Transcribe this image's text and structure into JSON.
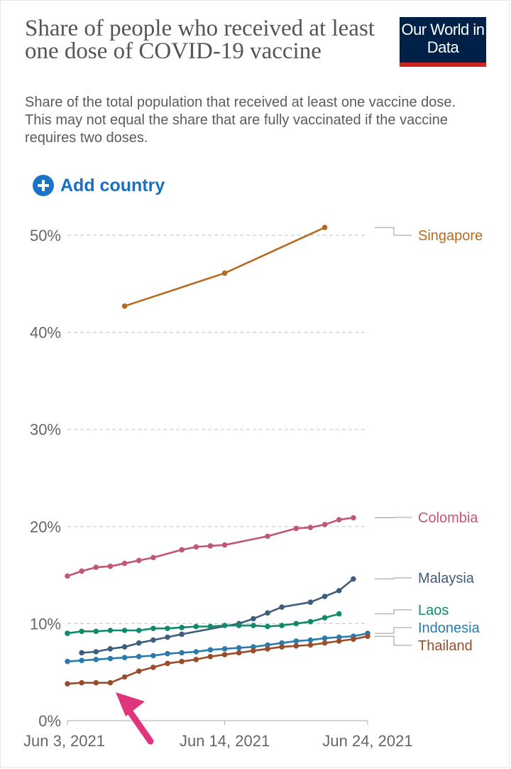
{
  "title": "Share of people who received at least one dose of COVID-19 vaccine",
  "subtitle": "Share of the total population that received at least one vaccine dose. This may not equal the share that are fully vaccinated if the vaccine requires two doses.",
  "logo_text": "Our World in Data",
  "add_country_label": "Add country",
  "colors": {
    "logo_bg": "#002147",
    "logo_bar": "#ce261e",
    "add_button": "#1a73c7",
    "arrow": "#e0357d",
    "grid": "#cccccc"
  },
  "chart_data": {
    "type": "line",
    "x_start": "2021-06-03",
    "xlim": [
      "2021-06-03",
      "2021-06-24"
    ],
    "x_tick_labels": [
      "Jun 3, 2021",
      "Jun 14, 2021",
      "Jun 24, 2021"
    ],
    "x_tick_dates": [
      "2021-06-03",
      "2021-06-14",
      "2021-06-24"
    ],
    "ylim": [
      0,
      50
    ],
    "y_ticks": [
      0,
      10,
      20,
      30,
      40,
      50
    ],
    "y_tick_labels": [
      "0%",
      "10%",
      "20%",
      "30%",
      "40%",
      "50%"
    ],
    "grid": true,
    "legend": "right",
    "annotation": "arrow",
    "series": [
      {
        "name": "Singapore",
        "color": "#b56b1f",
        "x": [
          "2021-06-07",
          "2021-06-14",
          "2021-06-21"
        ],
        "y": [
          42.7,
          46.1,
          50.8
        ]
      },
      {
        "name": "Colombia",
        "color": "#c05773",
        "x": [
          "2021-06-03",
          "2021-06-04",
          "2021-06-05",
          "2021-06-06",
          "2021-06-07",
          "2021-06-08",
          "2021-06-09",
          "2021-06-11",
          "2021-06-12",
          "2021-06-13",
          "2021-06-14",
          "2021-06-17",
          "2021-06-19",
          "2021-06-20",
          "2021-06-21",
          "2021-06-22",
          "2021-06-23"
        ],
        "y": [
          14.9,
          15.4,
          15.8,
          15.9,
          16.2,
          16.5,
          16.8,
          17.6,
          17.9,
          18.0,
          18.1,
          19.0,
          19.8,
          19.9,
          20.2,
          20.7,
          20.9
        ]
      },
      {
        "name": "Malaysia",
        "color": "#3f5d7d",
        "x": [
          "2021-06-04",
          "2021-06-05",
          "2021-06-06",
          "2021-06-07",
          "2021-06-08",
          "2021-06-09",
          "2021-06-10",
          "2021-06-11",
          "2021-06-15",
          "2021-06-16",
          "2021-06-17",
          "2021-06-18",
          "2021-06-20",
          "2021-06-21",
          "2021-06-22",
          "2021-06-23"
        ],
        "y": [
          7.0,
          7.1,
          7.4,
          7.6,
          8.0,
          8.3,
          8.6,
          8.9,
          10.0,
          10.5,
          11.1,
          11.7,
          12.2,
          12.8,
          13.4,
          14.6
        ]
      },
      {
        "name": "Laos",
        "color": "#108a6a",
        "x": [
          "2021-06-03",
          "2021-06-04",
          "2021-06-05",
          "2021-06-06",
          "2021-06-07",
          "2021-06-08",
          "2021-06-09",
          "2021-06-10",
          "2021-06-11",
          "2021-06-12",
          "2021-06-13",
          "2021-06-14",
          "2021-06-15",
          "2021-06-16",
          "2021-06-17",
          "2021-06-18",
          "2021-06-19",
          "2021-06-20",
          "2021-06-21",
          "2021-06-22"
        ],
        "y": [
          9.0,
          9.2,
          9.2,
          9.3,
          9.3,
          9.3,
          9.5,
          9.5,
          9.6,
          9.7,
          9.7,
          9.8,
          9.8,
          9.8,
          9.7,
          9.8,
          10.0,
          10.2,
          10.6,
          11.0
        ]
      },
      {
        "name": "Indonesia",
        "color": "#2a7bab",
        "x": [
          "2021-06-03",
          "2021-06-04",
          "2021-06-05",
          "2021-06-06",
          "2021-06-07",
          "2021-06-08",
          "2021-06-09",
          "2021-06-10",
          "2021-06-11",
          "2021-06-12",
          "2021-06-13",
          "2021-06-14",
          "2021-06-15",
          "2021-06-16",
          "2021-06-17",
          "2021-06-18",
          "2021-06-19",
          "2021-06-20",
          "2021-06-21",
          "2021-06-22",
          "2021-06-23",
          "2021-06-24"
        ],
        "y": [
          6.1,
          6.2,
          6.3,
          6.4,
          6.5,
          6.6,
          6.7,
          6.9,
          7.0,
          7.1,
          7.3,
          7.4,
          7.5,
          7.6,
          7.8,
          8.0,
          8.2,
          8.3,
          8.5,
          8.6,
          8.7,
          9.0
        ]
      },
      {
        "name": "Thailand",
        "color": "#9a4d2a",
        "x": [
          "2021-06-03",
          "2021-06-04",
          "2021-06-05",
          "2021-06-06",
          "2021-06-07",
          "2021-06-08",
          "2021-06-09",
          "2021-06-10",
          "2021-06-11",
          "2021-06-12",
          "2021-06-13",
          "2021-06-14",
          "2021-06-15",
          "2021-06-16",
          "2021-06-17",
          "2021-06-18",
          "2021-06-19",
          "2021-06-20",
          "2021-06-21",
          "2021-06-22",
          "2021-06-23",
          "2021-06-24"
        ],
        "y": [
          3.8,
          3.9,
          3.9,
          3.9,
          4.5,
          5.1,
          5.5,
          5.9,
          6.1,
          6.3,
          6.6,
          6.8,
          7.0,
          7.2,
          7.4,
          7.6,
          7.7,
          7.8,
          8.0,
          8.2,
          8.4,
          8.7
        ]
      }
    ]
  }
}
